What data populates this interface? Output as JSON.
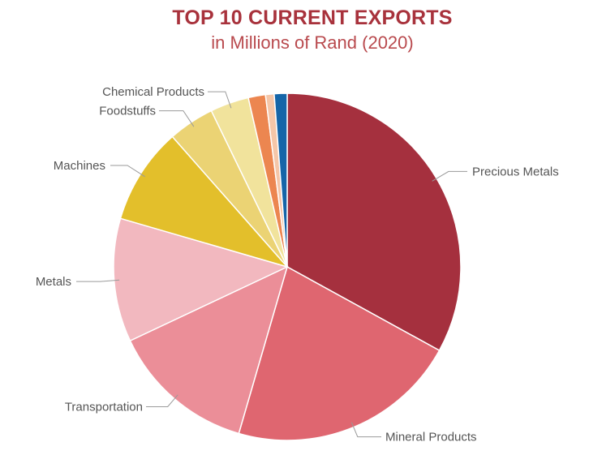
{
  "chart_data": {
    "type": "pie",
    "title": "TOP 10 CURRENT EXPORTS",
    "subtitle": "in Millions of Rand (2020)",
    "slices": [
      {
        "label": "Precious Metals",
        "value": 33.0,
        "color": "#a5303e"
      },
      {
        "label": "Mineral Products",
        "value": 21.5,
        "color": "#df6670"
      },
      {
        "label": "Transportation",
        "value": 13.5,
        "color": "#eb8e98"
      },
      {
        "label": "Metals",
        "value": 11.5,
        "color": "#f2b8bf"
      },
      {
        "label": "Machines",
        "value": 9.0,
        "color": "#e3bf2b"
      },
      {
        "label": "Foodstuffs",
        "value": 4.3,
        "color": "#ebd374"
      },
      {
        "label": "Chemical Products",
        "value": 3.6,
        "color": "#f1e39c"
      },
      {
        "label": "",
        "value": 1.6,
        "color": "#ec8650"
      },
      {
        "label": "",
        "value": 0.8,
        "color": "#f5c6a8"
      },
      {
        "label": "",
        "value": 1.2,
        "color": "#1565a8"
      }
    ]
  }
}
